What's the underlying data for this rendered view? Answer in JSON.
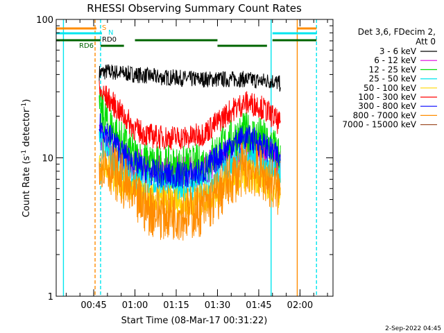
{
  "chart_data": {
    "type": "line",
    "title": "RHESSI Observing Summary Count Rates",
    "xlabel": "Start Time (08-Mar-17 00:31:22)",
    "ylabel": "Count Rate (s",
    "ylabel_sup": "-1",
    "ylabel_tail": " detector",
    "ylabel_sup2": "-1",
    "ylabel_close": ")",
    "y_scale": "log",
    "ylim": [
      1,
      100
    ],
    "xlim": [
      "00:31:22",
      "02:12:00"
    ],
    "x_ticks": [
      "00:45",
      "01:00",
      "01:15",
      "01:30",
      "01:45",
      "02:00"
    ],
    "y_ticks": [
      "1",
      "10",
      "100"
    ],
    "legend_placement": "right",
    "legend_header": [
      "Det 3,6, FDecim 2,",
      "Att 0"
    ],
    "footer_date": "2-Sep-2022 04:45",
    "flag_labels": [
      {
        "text": "S",
        "color": "#ff8c00"
      },
      {
        "text": "N",
        "color": "#00e5ee"
      },
      {
        "text": "RD0",
        "color": "#000000"
      },
      {
        "text": "RD6",
        "color": "#008000"
      }
    ],
    "flags": [
      {
        "name": "S",
        "color": "#ff8c00",
        "segments": [
          [
            "00:31:22",
            "00:46:00"
          ],
          [
            "01:59:00",
            "02:06:00"
          ]
        ]
      },
      {
        "name": "N",
        "color": "#00e5ee",
        "segments": [
          [
            "00:31:22",
            "00:48:00"
          ],
          [
            "01:50:00",
            "02:06:00"
          ]
        ]
      },
      {
        "name": "RD0",
        "color": "#006400",
        "segments": [
          [
            "00:31:22",
            "00:47:30"
          ],
          [
            "01:00:00",
            "01:30:00"
          ],
          [
            "01:50:00",
            "02:06:00"
          ]
        ]
      },
      {
        "name": "RD6",
        "color": "#006400",
        "segments": [
          [
            "00:47:30",
            "00:56:00"
          ],
          [
            "01:30:00",
            "01:48:00"
          ]
        ]
      }
    ],
    "vlines": [
      {
        "time": "00:34:00",
        "color": "#00e5ee",
        "dash": false
      },
      {
        "time": "00:45:30",
        "color": "#ff8c00",
        "dash": true
      },
      {
        "time": "00:47:30",
        "color": "#00e5ee",
        "dash": true
      },
      {
        "time": "01:49:30",
        "color": "#00e5ee",
        "dash": false
      },
      {
        "time": "01:59:00",
        "color": "#ff8c00",
        "dash": false
      },
      {
        "time": "02:06:00",
        "color": "#00e5ee",
        "dash": true
      }
    ],
    "series": [
      {
        "name": "3 - 6 keV",
        "color": "#000000",
        "x": [
          "00:47:00",
          "00:50:00",
          "00:55:00",
          "01:00:00",
          "01:05:00",
          "01:10:00",
          "01:15:00",
          "01:20:00",
          "01:25:00",
          "01:30:00",
          "01:35:00",
          "01:40:00",
          "01:45:00",
          "01:50:00",
          "01:53:00"
        ],
        "values": [
          41,
          42,
          41,
          40,
          39,
          38,
          38,
          37,
          37,
          37,
          37,
          37,
          36,
          36,
          34
        ],
        "noise": 0.06
      },
      {
        "name": "6 - 12 keV",
        "color": "#dd00dd",
        "x": [
          "00:47:00",
          "00:50:00",
          "00:55:00",
          "01:00:00",
          "01:05:00",
          "01:10:00",
          "01:15:00",
          "01:20:00",
          "01:25:00",
          "01:30:00",
          "01:35:00",
          "01:40:00",
          "01:45:00",
          "01:50:00",
          "01:53:00"
        ],
        "values": [
          14,
          12,
          10,
          9,
          8.5,
          8,
          8,
          8,
          8.3,
          9.5,
          11,
          12,
          11.5,
          10,
          9
        ],
        "noise": 0.12
      },
      {
        "name": "12 - 25 keV",
        "color": "#00dd00",
        "x": [
          "00:47:00",
          "00:50:00",
          "00:55:00",
          "01:00:00",
          "01:05:00",
          "01:10:00",
          "01:15:00",
          "01:20:00",
          "01:25:00",
          "01:30:00",
          "01:35:00",
          "01:40:00",
          "01:45:00",
          "01:50:00",
          "01:53:00"
        ],
        "values": [
          22,
          18,
          13,
          10,
          9,
          8.5,
          8.5,
          8.5,
          9,
          11,
          13.5,
          15,
          14,
          12,
          10
        ],
        "noise": 0.16
      },
      {
        "name": "25 - 50 keV",
        "color": "#00e5ee",
        "x": [
          "00:47:00",
          "00:50:00",
          "00:55:00",
          "01:00:00",
          "01:05:00",
          "01:10:00",
          "01:15:00",
          "01:20:00",
          "01:25:00",
          "01:30:00",
          "01:35:00",
          "01:40:00",
          "01:45:00",
          "01:50:00",
          "01:53:00"
        ],
        "values": [
          13,
          11,
          8.5,
          7,
          6.5,
          6.2,
          6.2,
          6.2,
          6.5,
          7.5,
          9,
          10,
          9.5,
          8,
          7
        ],
        "noise": 0.12
      },
      {
        "name": "50 - 100 keV",
        "color": "#ffd700",
        "x": [
          "00:47:00",
          "00:50:00",
          "00:55:00",
          "01:00:00",
          "01:05:00",
          "01:10:00",
          "01:15:00",
          "01:20:00",
          "01:25:00",
          "01:30:00",
          "01:35:00",
          "01:40:00",
          "01:45:00",
          "01:50:00",
          "01:53:00"
        ],
        "values": [
          9,
          8,
          6.5,
          5.5,
          5,
          4.8,
          4.8,
          4.8,
          5,
          5.8,
          6.8,
          7.5,
          7.2,
          6.2,
          5.5
        ],
        "noise": 0.12
      },
      {
        "name": "100 - 300 keV",
        "color": "#ff0000",
        "x": [
          "00:47:00",
          "00:50:00",
          "00:55:00",
          "01:00:00",
          "01:05:00",
          "01:10:00",
          "01:15:00",
          "01:20:00",
          "01:25:00",
          "01:30:00",
          "01:35:00",
          "01:40:00",
          "01:45:00",
          "01:50:00",
          "01:53:00"
        ],
        "values": [
          30,
          27,
          21,
          16,
          14.5,
          14,
          14,
          14,
          15,
          18,
          22,
          25,
          24,
          20,
          17
        ],
        "noise": 0.09
      },
      {
        "name": "300 - 800 keV",
        "color": "#0000ff",
        "x": [
          "00:47:00",
          "00:50:00",
          "00:55:00",
          "01:00:00",
          "01:05:00",
          "01:10:00",
          "01:15:00",
          "01:20:00",
          "01:25:00",
          "01:30:00",
          "01:35:00",
          "01:40:00",
          "01:45:00",
          "01:50:00",
          "01:53:00"
        ],
        "values": [
          17,
          15,
          11,
          9,
          8,
          7.5,
          7.5,
          7.5,
          8,
          10,
          12.5,
          14,
          13,
          11,
          9.5
        ],
        "noise": 0.1
      },
      {
        "name": "800 - 7000 keV",
        "color": "#ff8c00",
        "x": [
          "00:47:00",
          "00:50:00",
          "00:55:00",
          "01:00:00",
          "01:05:00",
          "01:10:00",
          "01:15:00",
          "01:20:00",
          "01:25:00",
          "01:30:00",
          "01:35:00",
          "01:40:00",
          "01:45:00",
          "01:50:00",
          "01:53:00"
        ],
        "values": [
          10,
          9,
          7,
          5,
          4.3,
          4,
          4,
          4,
          4.3,
          5.3,
          7,
          8.5,
          8,
          6.5,
          5.5
        ],
        "noise": 0.2
      },
      {
        "name": "7000 - 15000 keV",
        "color": "#a0522d",
        "x": [],
        "values": [],
        "noise": 0
      }
    ]
  }
}
